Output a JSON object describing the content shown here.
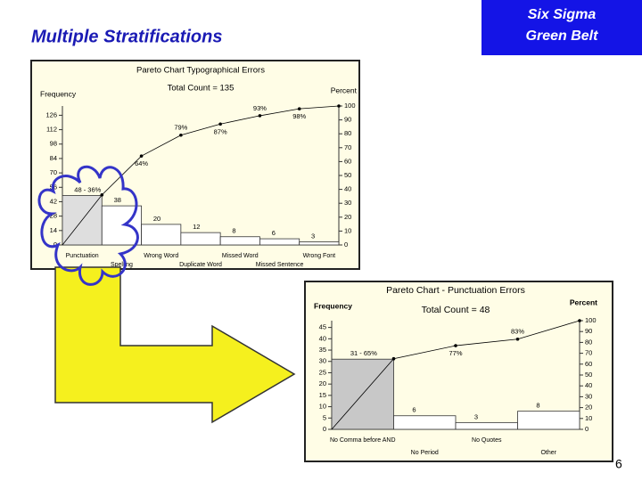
{
  "slide": {
    "title": "Multiple Stratifications",
    "badge": [
      "Six Sigma",
      "Green Belt"
    ],
    "page": "6"
  },
  "chart_data": [
    {
      "type": "pareto",
      "title": "Pareto Chart  Typographical Errors",
      "subtitle": "Total Count = 135",
      "categories": [
        "Punctuation",
        "Spelling",
        "Wrong Word",
        "Duplicate Word",
        "Missed Word",
        "Missed Sentence",
        "Wrong Font"
      ],
      "series": [
        {
          "name": "Frequency",
          "color": "#ffffff",
          "highlight": "#dedede",
          "values": [
            48,
            38,
            20,
            12,
            8,
            6,
            3
          ],
          "value_labels": [
            "48 - 36%",
            "38",
            "20",
            "12",
            "8",
            "6",
            "3"
          ]
        },
        {
          "name": "Percent",
          "axis": "y2",
          "color": "#000000",
          "values": [
            36,
            64,
            79,
            87,
            93,
            98,
            100
          ],
          "value_labels": [
            null,
            "64%",
            "79%",
            "87%",
            "93%",
            "98%",
            null
          ]
        }
      ],
      "ylim": [
        0,
        135
      ],
      "yticks": [
        0,
        14,
        28,
        42,
        56,
        70,
        84,
        98,
        112,
        126
      ],
      "y2lim": [
        0,
        100
      ],
      "y2ticks": [
        0,
        10,
        20,
        30,
        40,
        50,
        60,
        70,
        80,
        90,
        100
      ],
      "background": "#fffde6"
    },
    {
      "type": "pareto",
      "title": "Pareto Chart - Punctuation Errors",
      "subtitle": "Total Count = 48",
      "categories": [
        "No Comma  before AND",
        "No Period",
        "No Quotes",
        "Other"
      ],
      "series": [
        {
          "name": "Frequency",
          "color": "#ffffff",
          "highlight": "#c8c8c8",
          "values": [
            31,
            6,
            3,
            8
          ],
          "value_labels": [
            "31 - 65%",
            "6",
            "3",
            "8"
          ]
        },
        {
          "name": "Percent",
          "axis": "y2",
          "color": "#000000",
          "values": [
            65,
            77,
            83,
            100
          ],
          "value_labels": [
            null,
            "77%",
            "83%",
            null
          ]
        }
      ],
      "ylim": [
        0,
        48
      ],
      "yticks": [
        0,
        5,
        10,
        15,
        20,
        25,
        30,
        35,
        40,
        45
      ],
      "y2lim": [
        0,
        100
      ],
      "y2ticks": [
        0,
        10,
        20,
        30,
        40,
        50,
        60,
        70,
        80,
        90,
        100
      ],
      "background": "#fffde6"
    }
  ]
}
